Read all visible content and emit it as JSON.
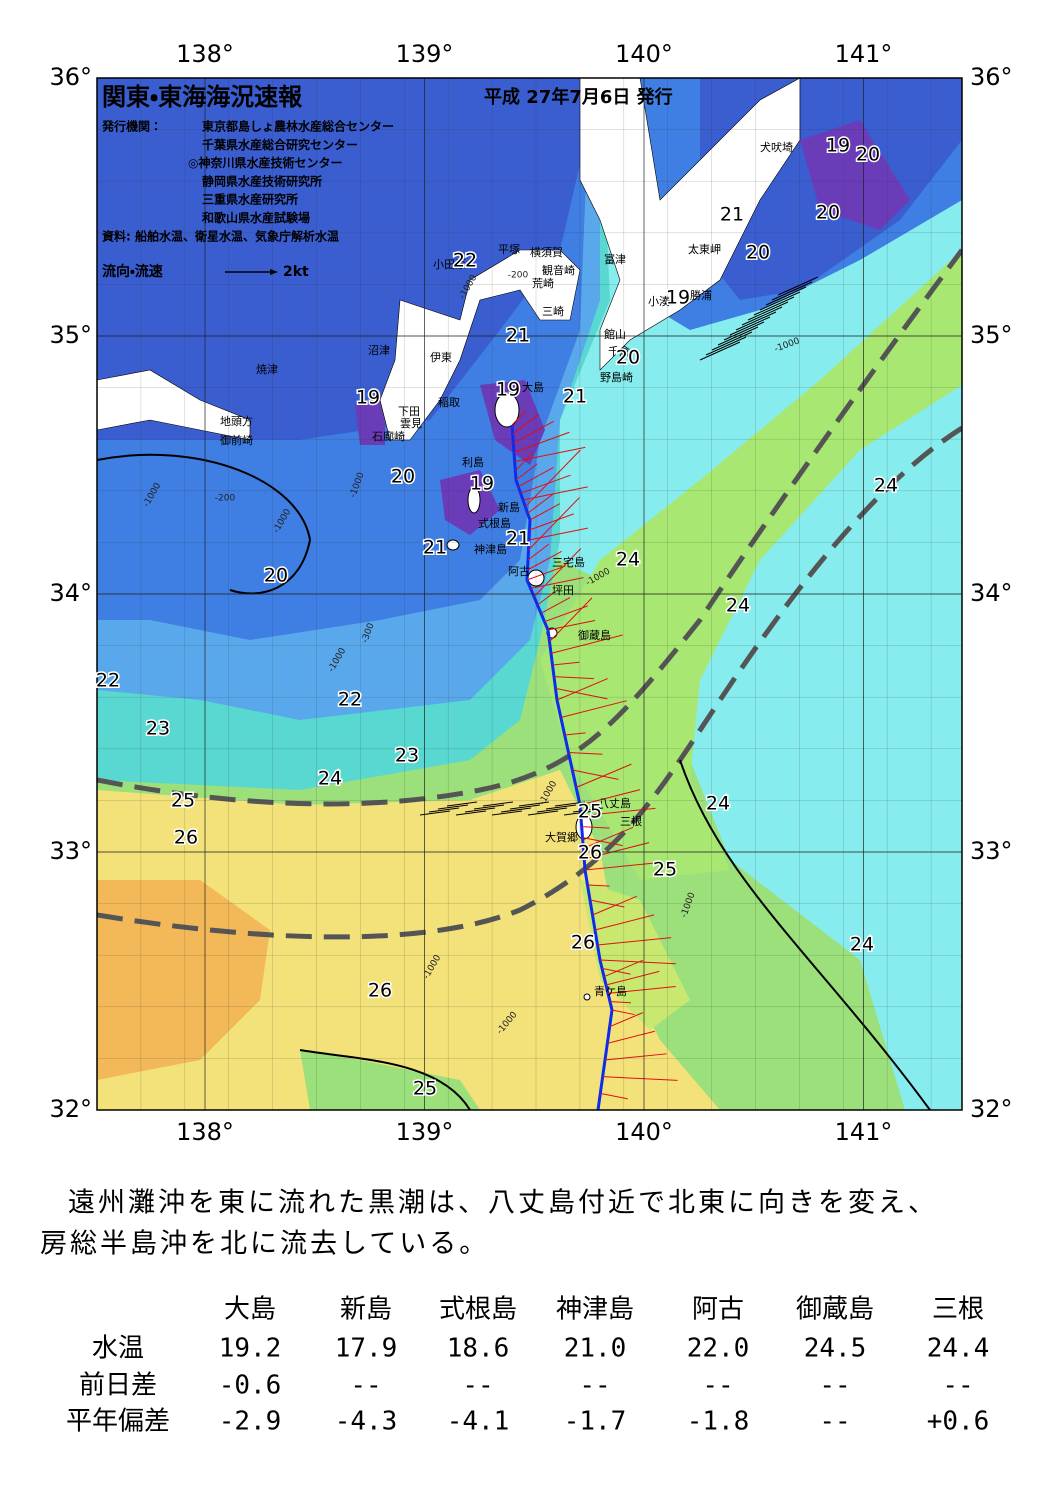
{
  "header": {
    "title": "関東・東海海況速報",
    "date": "平成 27年7月6日 発行",
    "issuer_label": "発行機関：",
    "issuers": [
      "東京都島しょ農林水産総合センター",
      "千葉県水産総合研究センター",
      "◎神奈川県水産技術センター",
      "静岡県水産技術研究所",
      "三重県水産研究所",
      "和歌山県水産試験場"
    ],
    "source": "資料: 船舶水温、衛星水温、気象庁解析水温",
    "legend": "流向・流速",
    "legend_scale": "2kt"
  },
  "map": {
    "lon_ticks": [
      {
        "value": 138,
        "label": "138°"
      },
      {
        "value": 139,
        "label": "139°"
      },
      {
        "value": 140,
        "label": "140°"
      },
      {
        "value": 141,
        "label": "141°"
      }
    ],
    "lat_ticks": [
      {
        "value": 36,
        "label": "36°"
      },
      {
        "value": 35,
        "label": "35°"
      },
      {
        "value": 34,
        "label": "34°"
      },
      {
        "value": 33,
        "label": "33°"
      },
      {
        "value": 32,
        "label": "32°"
      }
    ],
    "places": [
      "犬吠埼",
      "太東岬",
      "勝浦",
      "小湊",
      "富津",
      "横須賀",
      "観音崎",
      "平塚",
      "小田原",
      "荒崎",
      "三崎",
      "館山",
      "千倉",
      "野島崎",
      "沼津",
      "伊東",
      "焼津",
      "稲取",
      "下田",
      "雲見",
      "石廊崎",
      "地頭方",
      "御前崎",
      "大島",
      "利島",
      "新島",
      "式根島",
      "神津島",
      "三宅島",
      "阿古",
      "坪田",
      "御蔵島",
      "八丈島",
      "三根",
      "大賀郷",
      "青ケ島"
    ],
    "contour_labels": [
      "19",
      "20",
      "20",
      "21",
      "20",
      "19",
      "22",
      "21",
      "20",
      "21",
      "19",
      "19",
      "20",
      "19",
      "21",
      "21",
      "20",
      "24",
      "24",
      "24",
      "22",
      "22",
      "23",
      "23",
      "24",
      "25",
      "26",
      "24",
      "25",
      "26",
      "25",
      "24",
      "26",
      "26",
      "25"
    ],
    "depth_labels": [
      "-200",
      "-1000",
      "-1000",
      "-200",
      "-1000",
      "-1000",
      "-1000",
      "-1000",
      "-300",
      "-1000",
      "-1000",
      "-1000",
      "-1000",
      "-1000"
    ]
  },
  "summary": [
    "遠州灘沖を東に流れた黒潮は、八丈島付近で北東に向きを変え、",
    "房総半島沖を北に流去している。"
  ],
  "table": {
    "columns": [
      "大島",
      "新島",
      "式根島",
      "神津島",
      "阿古",
      "御蔵島",
      "三根"
    ],
    "rows": [
      {
        "label": "水温",
        "cells": [
          "19.2",
          "17.9",
          "18.6",
          "21.0",
          "22.0",
          "24.5",
          "24.4"
        ]
      },
      {
        "label": "前日差",
        "cells": [
          "-0.6",
          "--",
          "--",
          "--",
          "--",
          "--",
          "--"
        ]
      },
      {
        "label": "平年偏差",
        "cells": [
          "-2.9",
          "-4.3",
          "-4.1",
          "-1.7",
          "-1.8",
          "--",
          "+0.6"
        ]
      }
    ]
  }
}
